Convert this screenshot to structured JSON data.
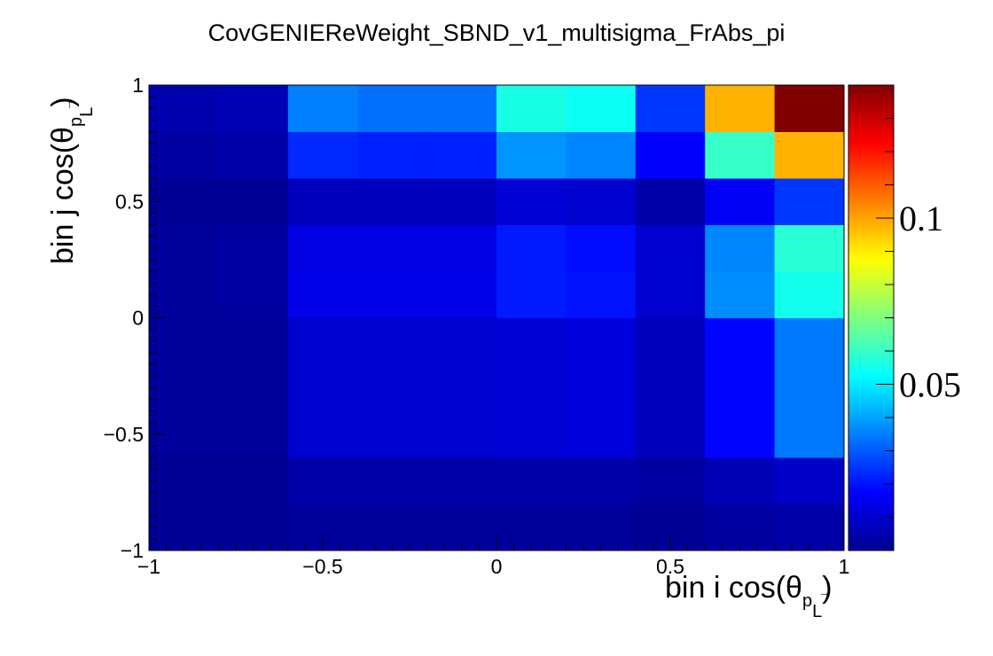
{
  "chart_data": {
    "type": "heatmap",
    "title": "CovGENIEReWeight_SBND_v1_multisigma_FrAbs_pi",
    "xlabel": {
      "main": "bin i cos(θ",
      "sub": "p",
      "subsub": "L",
      "close": ")"
    },
    "ylabel": {
      "main": "bin j cos(θ",
      "sub": "p",
      "subsub": "L",
      "close": ")"
    },
    "xlim": [
      -1,
      1
    ],
    "ylim": [
      -1,
      1
    ],
    "zlim": [
      0.0,
      0.14
    ],
    "x_ticks": [
      "−1",
      "−0.5",
      "0",
      "0.5",
      "1"
    ],
    "y_ticks": [
      "−1",
      "−0.5",
      "0",
      "0.5",
      "1"
    ],
    "z_ticks": [
      "0.05",
      "0.1"
    ],
    "x_edges": [
      -1,
      -0.8,
      -0.6,
      -0.4,
      -0.2,
      0,
      0.2,
      0.4,
      0.6,
      0.8,
      1
    ],
    "y_edges": [
      -1,
      -0.8,
      -0.6,
      -0.4,
      -0.2,
      0,
      0.2,
      0.4,
      0.6,
      0.8,
      1
    ],
    "values": [
      [
        0.001,
        0.001,
        0.002,
        0.002,
        0.002,
        0.002,
        0.002,
        0.001,
        0.003,
        0.004
      ],
      [
        0.001,
        0.001,
        0.004,
        0.004,
        0.004,
        0.004,
        0.004,
        0.003,
        0.006,
        0.009
      ],
      [
        0.002,
        0.002,
        0.01,
        0.01,
        0.01,
        0.011,
        0.012,
        0.007,
        0.018,
        0.034
      ],
      [
        0.002,
        0.002,
        0.01,
        0.01,
        0.01,
        0.011,
        0.012,
        0.007,
        0.018,
        0.034
      ],
      [
        0.002,
        0.002,
        0.01,
        0.01,
        0.01,
        0.011,
        0.012,
        0.007,
        0.018,
        0.034
      ],
      [
        0.002,
        0.003,
        0.014,
        0.014,
        0.014,
        0.021,
        0.02,
        0.01,
        0.037,
        0.055
      ],
      [
        0.002,
        0.003,
        0.013,
        0.013,
        0.013,
        0.021,
        0.019,
        0.01,
        0.036,
        0.058
      ],
      [
        0.001,
        0.001,
        0.007,
        0.007,
        0.007,
        0.011,
        0.01,
        0.004,
        0.016,
        0.025
      ],
      [
        0.003,
        0.004,
        0.023,
        0.022,
        0.022,
        0.038,
        0.036,
        0.017,
        0.06,
        0.098
      ],
      [
        0.005,
        0.006,
        0.035,
        0.033,
        0.033,
        0.056,
        0.054,
        0.025,
        0.098,
        0.14
      ]
    ],
    "colormap": "rainbow (ROOT kBird-like jet)"
  }
}
